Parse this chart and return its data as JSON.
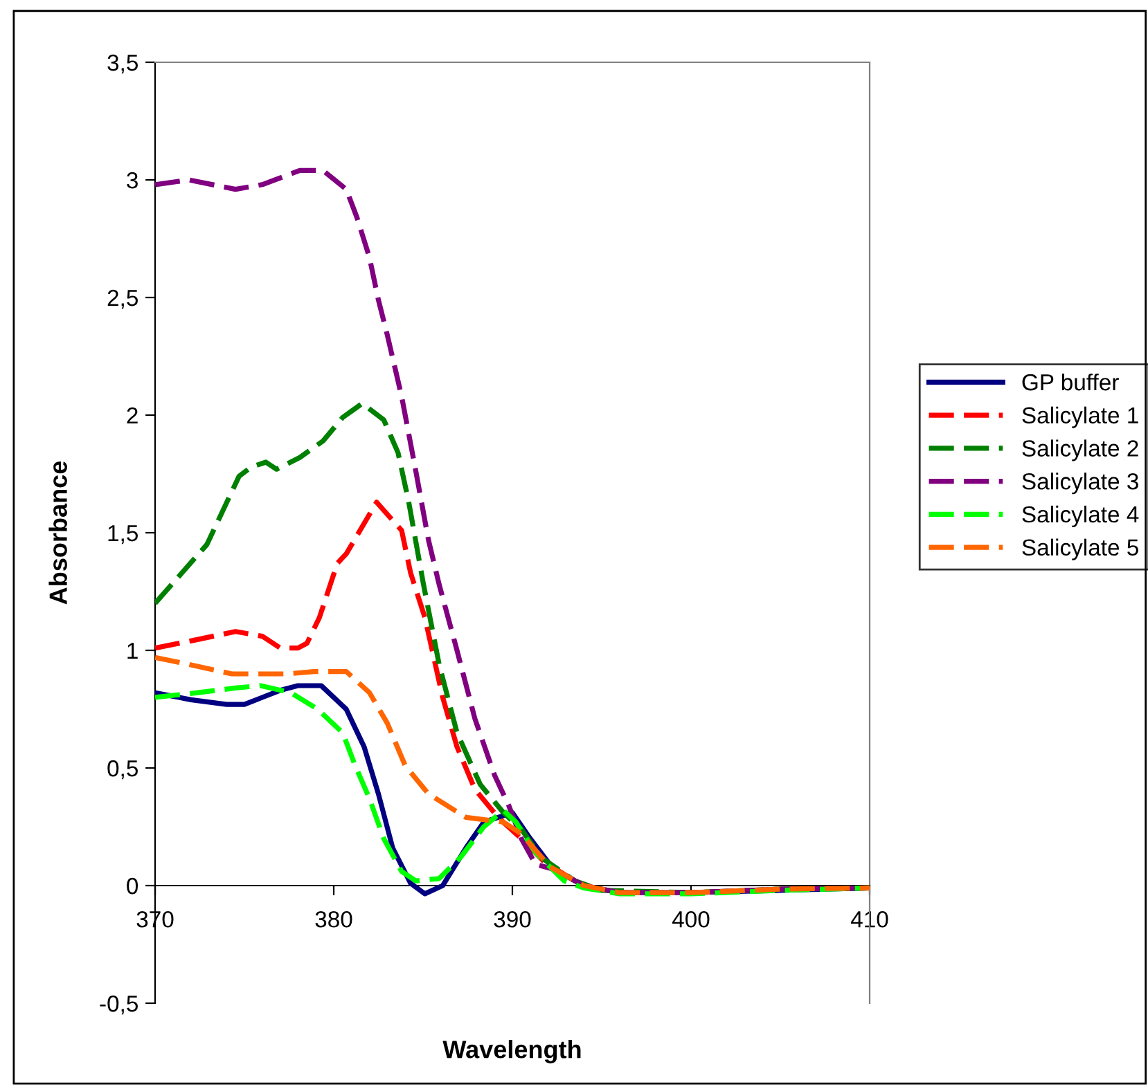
{
  "chart_data": {
    "type": "line",
    "xlabel": "Wavelength",
    "ylabel": "Absorbance",
    "xlim": [
      370,
      410
    ],
    "xticks": [
      370,
      380,
      390,
      400,
      410
    ],
    "ylim": [
      -0.5,
      3.5
    ],
    "yticks": [
      {
        "value": -0.5,
        "label": "-0,5"
      },
      0,
      {
        "value": 0.5,
        "label": "0,5"
      },
      1,
      {
        "value": 1.5,
        "label": "1,5"
      },
      2,
      {
        "value": 2.5,
        "label": "2,5"
      },
      3,
      {
        "value": 3.5,
        "label": "3,5"
      }
    ],
    "grid": false,
    "legend": "right",
    "marker": "none",
    "series": [
      {
        "name": "GP buffer",
        "color": "#000080",
        "line_style": "solid",
        "x": [
          370,
          372,
          374,
          375,
          376,
          377,
          378,
          379,
          379.3,
          380.7,
          381.7,
          382.5,
          383.3,
          384.3,
          385.1,
          386.1,
          387.4,
          388.4,
          390,
          391,
          392.3,
          394,
          396,
          400,
          405,
          410
        ],
        "values": [
          0.82,
          0.79,
          0.77,
          0.77,
          0.8,
          0.83,
          0.85,
          0.85,
          0.85,
          0.75,
          0.59,
          0.39,
          0.16,
          0.01,
          -0.035,
          0,
          0.16,
          0.27,
          0.31,
          0.2,
          0.07,
          0,
          -0.03,
          -0.03,
          -0.02,
          -0.01
        ]
      },
      {
        "name": "Salicylate 1",
        "color": "#ff0000",
        "line_style": "dashed",
        "x": [
          370,
          372,
          374.5,
          376,
          377,
          378,
          378.5,
          379.2,
          380.2,
          380.7,
          382.4,
          383.8,
          384.3,
          385.1,
          386.1,
          386.9,
          387.9,
          389.2,
          390.5,
          391.8,
          393.5
        ],
        "values": [
          1.01,
          1.04,
          1.08,
          1.06,
          1.01,
          1.01,
          1.03,
          1.14,
          1.37,
          1.41,
          1.63,
          1.51,
          1.33,
          1.14,
          0.8,
          0.59,
          0.41,
          0.29,
          0.2,
          0.1,
          0.02
        ]
      },
      {
        "name": "Salicylate 2",
        "color": "#008000",
        "line_style": "dashed",
        "x": [
          370,
          372.9,
          374.7,
          375.4,
          376.2,
          376.8,
          378.1,
          379.4,
          380.5,
          381.6,
          382.8,
          383.6,
          384.2,
          385,
          385.9,
          386.9,
          388.2,
          389.5,
          390.5,
          391.6,
          393.5,
          395,
          400,
          405,
          410
        ],
        "values": [
          1.2,
          1.45,
          1.74,
          1.78,
          1.8,
          1.77,
          1.82,
          1.89,
          1.99,
          2.05,
          1.98,
          1.84,
          1.63,
          1.29,
          0.94,
          0.65,
          0.43,
          0.31,
          0.24,
          0.12,
          0.02,
          -0.02,
          -0.03,
          -0.015,
          -0.01
        ]
      },
      {
        "name": "Salicylate 3",
        "color": "#800080",
        "line_style": "dashed",
        "x": [
          370,
          371.9,
          374.5,
          376,
          378.1,
          379.4,
          380.7,
          381.3,
          382,
          382.5,
          383,
          383.8,
          384.6,
          385.3,
          385.9,
          386.9,
          387.9,
          389,
          389.8,
          390.5,
          391.3,
          392.3,
          394,
          396,
          400,
          405,
          410
        ],
        "values": [
          2.98,
          3.0,
          2.96,
          2.98,
          3.04,
          3.04,
          2.96,
          2.84,
          2.67,
          2.49,
          2.34,
          2.08,
          1.76,
          1.47,
          1.28,
          1.0,
          0.71,
          0.47,
          0.34,
          0.2,
          0.09,
          0.07,
          0,
          -0.03,
          -0.03,
          -0.015,
          -0.01
        ]
      },
      {
        "name": "Salicylate 4",
        "color": "#00ff00",
        "line_style": "dashed",
        "x": [
          370,
          372.4,
          374.5,
          375.9,
          377.6,
          379.1,
          380.5,
          381.2,
          382,
          382.8,
          383.8,
          384.6,
          385.9,
          387.1,
          388.4,
          389.5,
          390.2,
          391.3,
          392.9,
          394,
          396,
          400,
          405,
          410
        ],
        "values": [
          0.8,
          0.82,
          0.84,
          0.85,
          0.82,
          0.75,
          0.65,
          0.51,
          0.37,
          0.2,
          0.06,
          0.02,
          0.03,
          0.12,
          0.25,
          0.32,
          0.27,
          0.14,
          0.02,
          -0.01,
          -0.035,
          -0.035,
          -0.02,
          -0.01
        ]
      },
      {
        "name": "Salicylate 5",
        "color": "#ff6600",
        "line_style": "dashed",
        "x": [
          370,
          371.9,
          374.3,
          377.4,
          378.9,
          380.7,
          382,
          383,
          384,
          385.3,
          387.4,
          389.5,
          390.5,
          392.1,
          394,
          396,
          400,
          405,
          410
        ],
        "values": [
          0.97,
          0.94,
          0.9,
          0.9,
          0.91,
          0.91,
          0.82,
          0.69,
          0.51,
          0.39,
          0.29,
          0.27,
          0.22,
          0.08,
          0,
          -0.03,
          -0.03,
          -0.015,
          -0.01
        ]
      }
    ]
  }
}
